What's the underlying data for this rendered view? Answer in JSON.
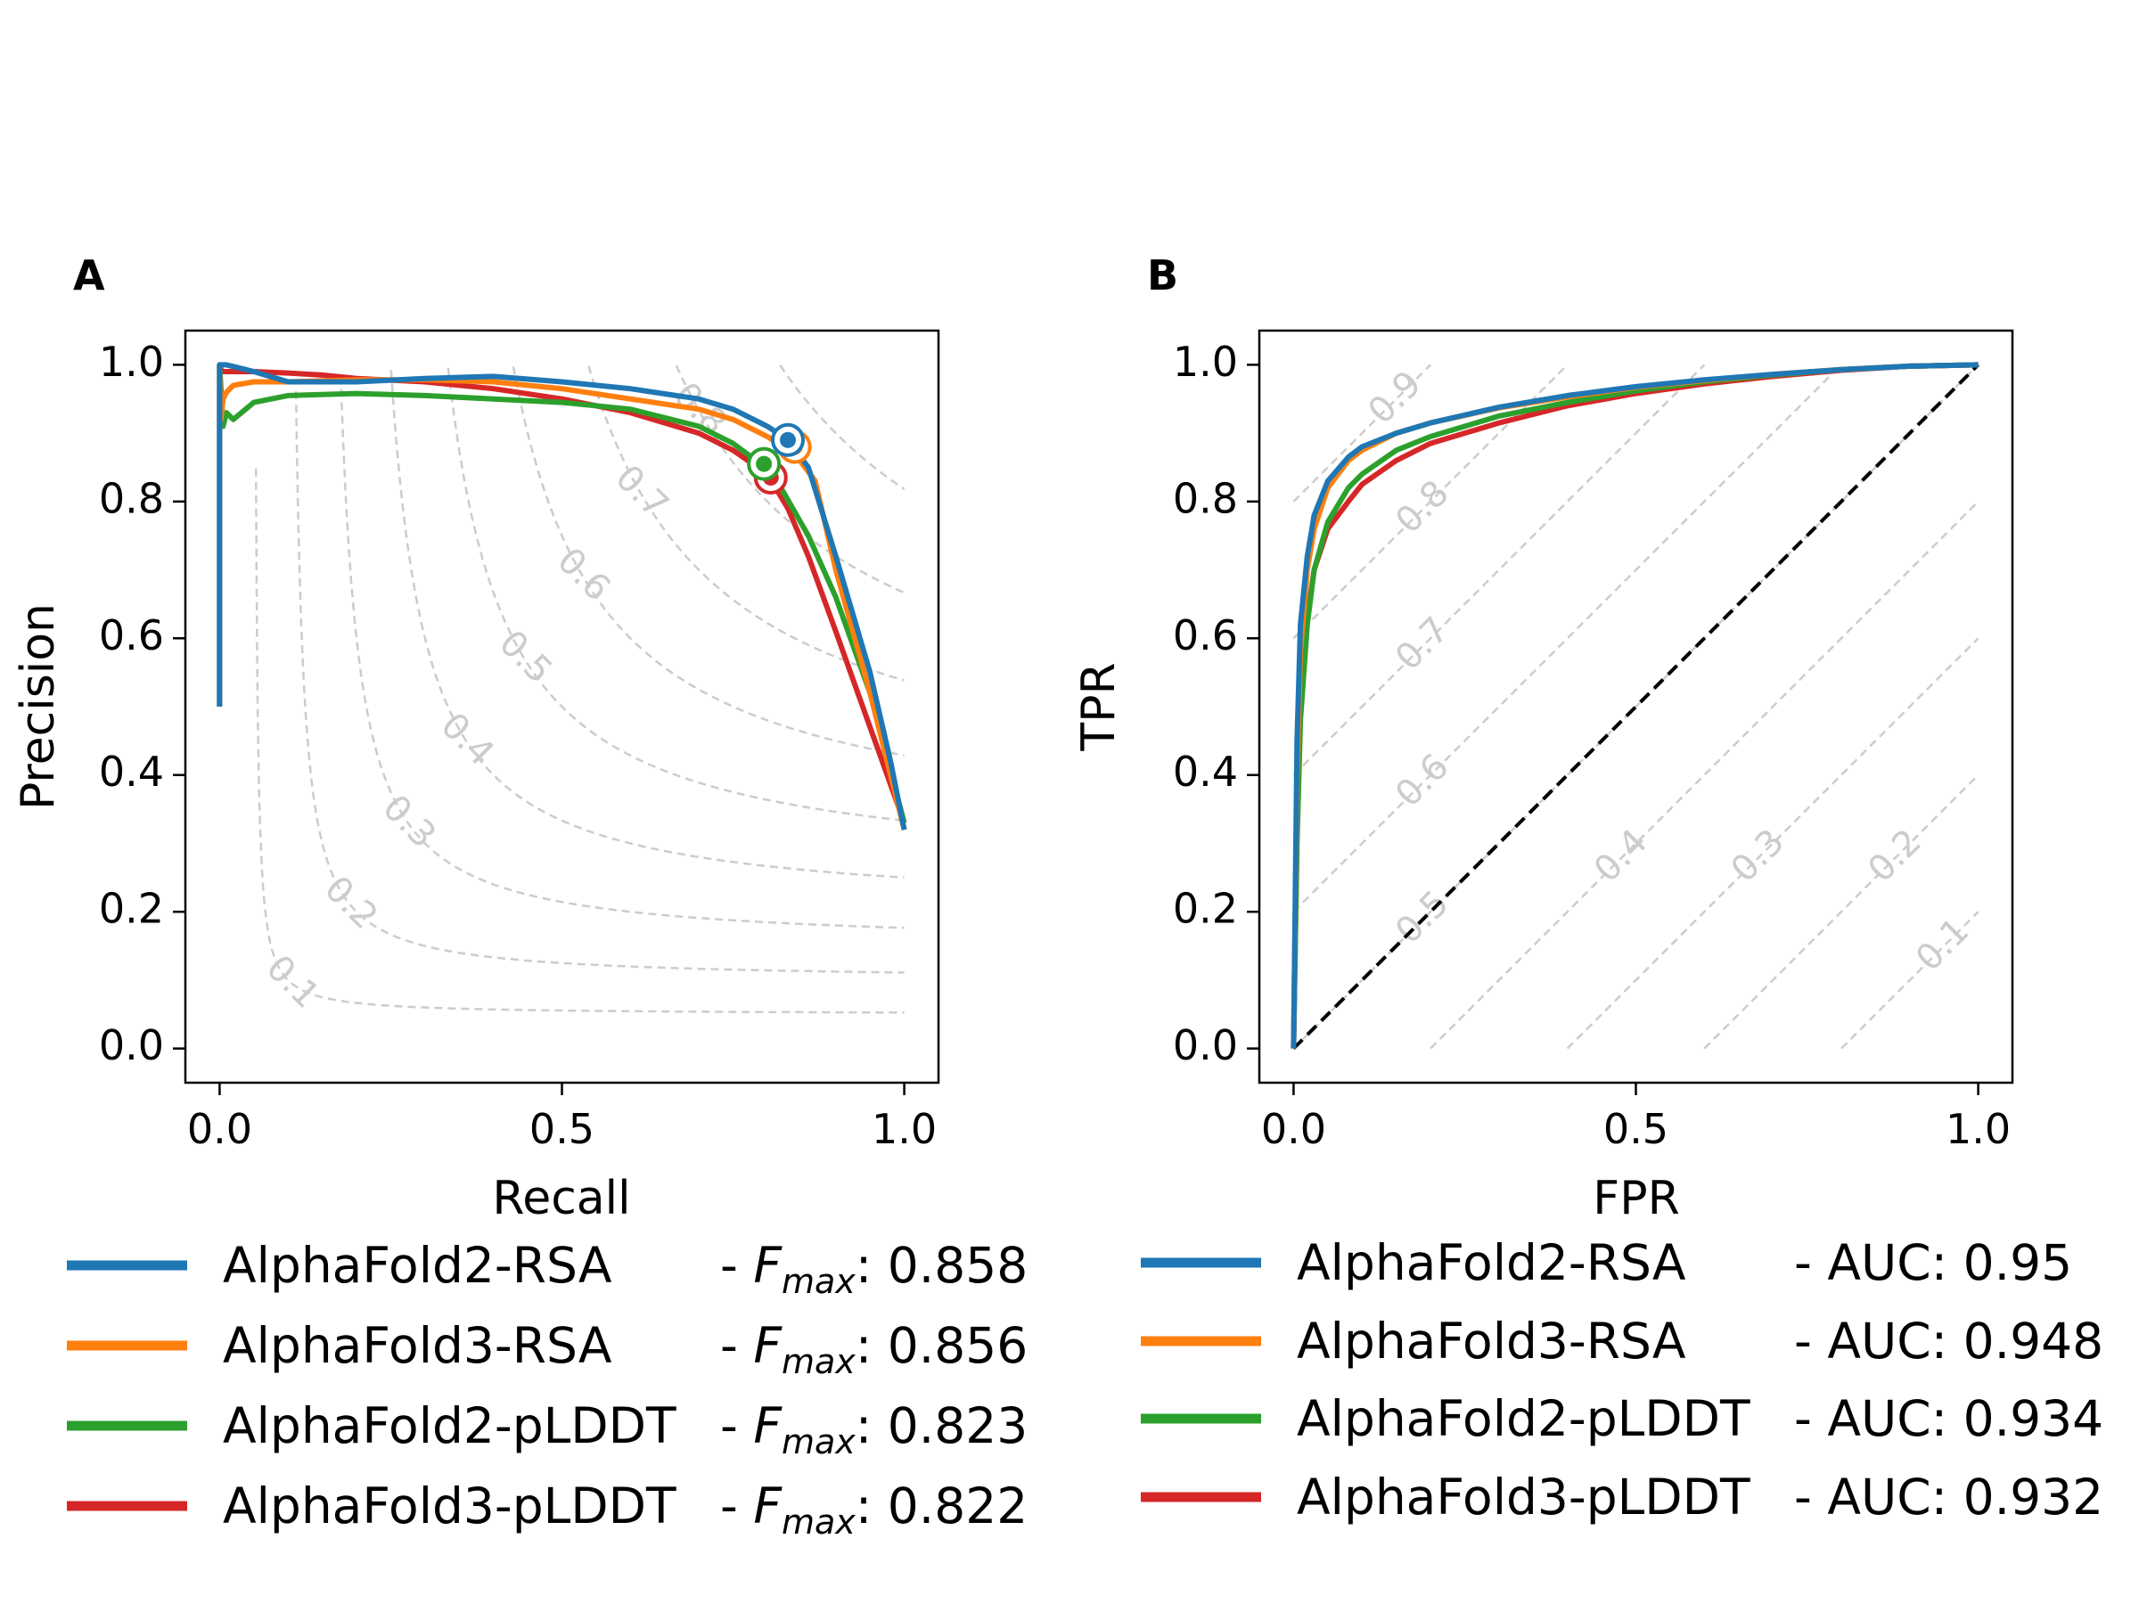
{
  "chart_data": [
    {
      "panel_label": "A",
      "type": "line",
      "xlabel": "Recall",
      "ylabel": "Precision",
      "xlim": [
        -0.05,
        1.05
      ],
      "ylim": [
        -0.05,
        1.05
      ],
      "xticks": [
        "0.0",
        "0.5",
        "1.0"
      ],
      "yticks": [
        "0.0",
        "0.2",
        "0.4",
        "0.6",
        "0.8",
        "1.0"
      ],
      "iso_f1_levels": [
        "0.1",
        "0.2",
        "0.3",
        "0.4",
        "0.5",
        "0.6",
        "0.7",
        "0.8",
        "0.9"
      ],
      "series": [
        {
          "name": "AlphaFold2-RSA",
          "metric_label": "F",
          "metric_sub": "max",
          "metric_value": "0.858",
          "color": "#1f77b4",
          "x": [
            0.0,
            0.003,
            0.01,
            0.03,
            0.05,
            0.1,
            0.2,
            0.3,
            0.4,
            0.5,
            0.6,
            0.7,
            0.75,
            0.8,
            0.83,
            0.86,
            0.9,
            0.95,
            0.98,
            1.0
          ],
          "y": [
            1.0,
            1.0,
            1.0,
            0.995,
            0.99,
            0.975,
            0.975,
            0.98,
            0.983,
            0.975,
            0.965,
            0.95,
            0.935,
            0.91,
            0.89,
            0.85,
            0.72,
            0.55,
            0.42,
            0.32
          ],
          "best": [
            0.83,
            0.89
          ]
        },
        {
          "name": "AlphaFold3-RSA",
          "metric_label": "F",
          "metric_sub": "max",
          "metric_value": "0.856",
          "color": "#ff7f0e",
          "x": [
            0.0,
            0.002,
            0.005,
            0.01,
            0.02,
            0.05,
            0.1,
            0.2,
            0.3,
            0.4,
            0.5,
            0.6,
            0.7,
            0.75,
            0.8,
            0.84,
            0.87,
            0.9,
            0.95,
            1.0
          ],
          "y": [
            1.0,
            0.92,
            0.95,
            0.96,
            0.97,
            0.975,
            0.975,
            0.978,
            0.978,
            0.975,
            0.965,
            0.95,
            0.935,
            0.92,
            0.895,
            0.87,
            0.83,
            0.7,
            0.52,
            0.32
          ],
          "best": [
            0.84,
            0.88
          ]
        },
        {
          "name": "AlphaFold2-pLDDT",
          "metric_label": "F",
          "metric_sub": "max",
          "metric_value": "0.823",
          "color": "#2ca02c",
          "x": [
            0.0,
            0.005,
            0.01,
            0.02,
            0.05,
            0.1,
            0.2,
            0.3,
            0.4,
            0.5,
            0.6,
            0.7,
            0.75,
            0.79,
            0.82,
            0.86,
            0.9,
            0.95,
            1.0
          ],
          "y": [
            1.0,
            0.91,
            0.93,
            0.92,
            0.945,
            0.955,
            0.958,
            0.955,
            0.95,
            0.945,
            0.935,
            0.91,
            0.885,
            0.855,
            0.82,
            0.75,
            0.66,
            0.52,
            0.33
          ],
          "best": [
            0.795,
            0.855
          ]
        },
        {
          "name": "AlphaFold3-pLDDT",
          "metric_label": "F",
          "metric_sub": "max",
          "metric_value": "0.822",
          "color": "#d62728",
          "x": [
            0.0,
            0.003,
            0.01,
            0.05,
            0.1,
            0.15,
            0.2,
            0.3,
            0.4,
            0.5,
            0.6,
            0.7,
            0.75,
            0.8,
            0.83,
            0.86,
            0.9,
            0.95,
            1.0
          ],
          "y": [
            1.0,
            0.99,
            0.99,
            0.99,
            0.988,
            0.985,
            0.98,
            0.975,
            0.965,
            0.95,
            0.93,
            0.9,
            0.875,
            0.84,
            0.79,
            0.72,
            0.61,
            0.47,
            0.33
          ],
          "best": [
            0.805,
            0.835
          ]
        }
      ]
    },
    {
      "panel_label": "B",
      "type": "line",
      "xlabel": "FPR",
      "ylabel": "TPR",
      "xlim": [
        -0.05,
        1.05
      ],
      "ylim": [
        -0.05,
        1.05
      ],
      "xticks": [
        "0.0",
        "0.5",
        "1.0"
      ],
      "yticks": [
        "0.0",
        "0.2",
        "0.4",
        "0.6",
        "0.8",
        "1.0"
      ],
      "iso_levels": [
        "0.1",
        "0.2",
        "0.3",
        "0.4",
        "0.5",
        "0.6",
        "0.7",
        "0.8",
        "0.9"
      ],
      "diagonal": true,
      "series": [
        {
          "name": "AlphaFold2-RSA",
          "metric_label": "AUC",
          "metric_value": "0.95",
          "color": "#1f77b4",
          "x": [
            0.0,
            0.005,
            0.01,
            0.02,
            0.03,
            0.05,
            0.08,
            0.1,
            0.15,
            0.2,
            0.3,
            0.4,
            0.5,
            0.6,
            0.7,
            0.8,
            0.9,
            1.0
          ],
          "y": [
            0.0,
            0.45,
            0.62,
            0.72,
            0.78,
            0.83,
            0.865,
            0.88,
            0.9,
            0.915,
            0.938,
            0.955,
            0.968,
            0.978,
            0.986,
            0.993,
            0.998,
            1.0
          ]
        },
        {
          "name": "AlphaFold3-RSA",
          "metric_label": "AUC",
          "metric_value": "0.948",
          "color": "#ff7f0e",
          "x": [
            0.0,
            0.005,
            0.01,
            0.02,
            0.03,
            0.05,
            0.08,
            0.1,
            0.15,
            0.2,
            0.3,
            0.4,
            0.5,
            0.6,
            0.7,
            0.8,
            0.9,
            1.0
          ],
          "y": [
            0.0,
            0.4,
            0.58,
            0.7,
            0.76,
            0.82,
            0.86,
            0.875,
            0.9,
            0.915,
            0.937,
            0.953,
            0.967,
            0.977,
            0.986,
            0.993,
            0.998,
            1.0
          ]
        },
        {
          "name": "AlphaFold2-pLDDT",
          "metric_label": "AUC",
          "metric_value": "0.934",
          "color": "#2ca02c",
          "x": [
            0.0,
            0.005,
            0.01,
            0.02,
            0.03,
            0.05,
            0.08,
            0.1,
            0.15,
            0.2,
            0.3,
            0.4,
            0.5,
            0.6,
            0.7,
            0.8,
            0.9,
            1.0
          ],
          "y": [
            0.0,
            0.3,
            0.48,
            0.62,
            0.7,
            0.77,
            0.82,
            0.84,
            0.875,
            0.895,
            0.925,
            0.945,
            0.962,
            0.975,
            0.985,
            0.993,
            0.998,
            1.0
          ]
        },
        {
          "name": "AlphaFold3-pLDDT",
          "metric_label": "AUC",
          "metric_value": "0.932",
          "color": "#d62728",
          "x": [
            0.0,
            0.005,
            0.01,
            0.02,
            0.03,
            0.05,
            0.08,
            0.1,
            0.15,
            0.2,
            0.3,
            0.4,
            0.5,
            0.6,
            0.7,
            0.8,
            0.9,
            1.0
          ],
          "y": [
            0.0,
            0.32,
            0.5,
            0.63,
            0.7,
            0.76,
            0.8,
            0.825,
            0.86,
            0.885,
            0.915,
            0.94,
            0.958,
            0.972,
            0.983,
            0.992,
            0.998,
            1.0
          ]
        }
      ]
    }
  ],
  "legend_a": [
    {
      "name": "AlphaFold2-RSA",
      "sep": "- ",
      "metric_label": "F",
      "metric_sub": "max",
      "metric_value": ": 0.858",
      "color": "#1f77b4"
    },
    {
      "name": "AlphaFold3-RSA",
      "sep": "- ",
      "metric_label": "F",
      "metric_sub": "max",
      "metric_value": ": 0.856",
      "color": "#ff7f0e"
    },
    {
      "name": "AlphaFold2-pLDDT",
      "sep": "- ",
      "metric_label": "F",
      "metric_sub": "max",
      "metric_value": ": 0.823",
      "color": "#2ca02c"
    },
    {
      "name": "AlphaFold3-pLDDT",
      "sep": "- ",
      "metric_label": "F",
      "metric_sub": "max",
      "metric_value": ": 0.822",
      "color": "#d62728"
    }
  ],
  "legend_b": [
    {
      "name": "AlphaFold2-RSA",
      "metric_text": "- AUC: 0.95",
      "color": "#1f77b4"
    },
    {
      "name": "AlphaFold3-RSA",
      "metric_text": "- AUC: 0.948",
      "color": "#ff7f0e"
    },
    {
      "name": "AlphaFold2-pLDDT",
      "metric_text": "- AUC: 0.934",
      "color": "#2ca02c"
    },
    {
      "name": "AlphaFold3-pLDDT",
      "metric_text": "- AUC: 0.932",
      "color": "#d62728"
    }
  ]
}
